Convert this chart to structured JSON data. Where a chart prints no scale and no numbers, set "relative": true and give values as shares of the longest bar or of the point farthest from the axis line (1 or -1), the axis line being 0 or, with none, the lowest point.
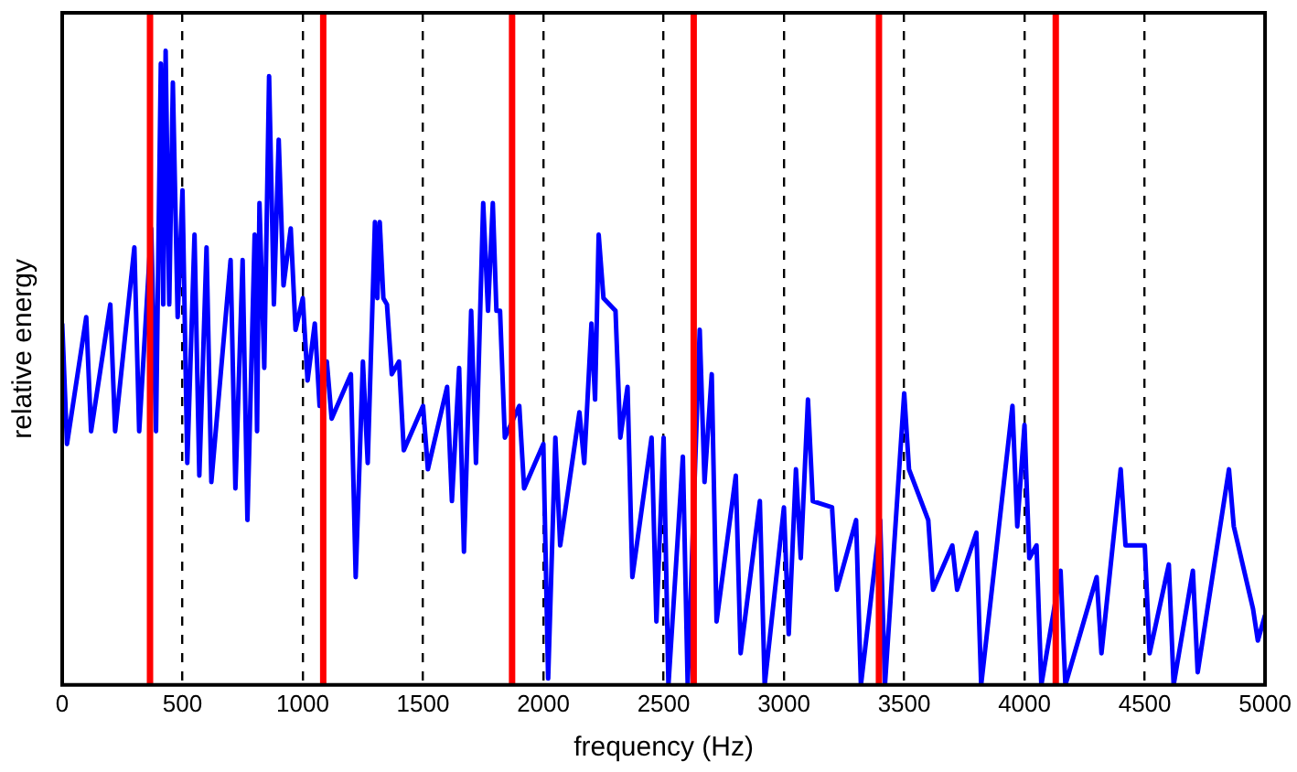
{
  "chart_data": {
    "type": "line",
    "relative": true,
    "xlabel": "frequency (Hz)",
    "ylabel": "relative energy",
    "xlim": [
      0,
      5000
    ],
    "xticks": [
      0,
      500,
      1000,
      1500,
      2000,
      2500,
      3000,
      3500,
      4000,
      4500,
      5000
    ],
    "grid": "x",
    "marker": "none",
    "line_style": "solid",
    "series": [
      {
        "color": "#0000ff",
        "x": [
          0,
          20,
          100,
          120,
          200,
          220,
          300,
          320,
          370,
          390,
          410,
          420,
          430,
          445,
          460,
          480,
          500,
          520,
          550,
          570,
          600,
          620,
          700,
          720,
          750,
          770,
          800,
          810,
          820,
          840,
          860,
          880,
          900,
          920,
          950,
          970,
          1000,
          1020,
          1050,
          1070,
          1100,
          1120,
          1200,
          1220,
          1250,
          1270,
          1300,
          1310,
          1320,
          1335,
          1350,
          1370,
          1400,
          1420,
          1500,
          1520,
          1600,
          1620,
          1650,
          1670,
          1700,
          1720,
          1750,
          1770,
          1790,
          1805,
          1820,
          1840,
          1900,
          1920,
          2000,
          2020,
          2050,
          2070,
          2150,
          2170,
          2200,
          2215,
          2230,
          2250,
          2300,
          2320,
          2350,
          2370,
          2450,
          2470,
          2500,
          2520,
          2580,
          2600,
          2650,
          2670,
          2700,
          2720,
          2800,
          2820,
          2900,
          2920,
          3000,
          3020,
          3050,
          3070,
          3100,
          3120,
          3200,
          3220,
          3300,
          3320,
          3400,
          3420,
          3500,
          3520,
          3600,
          3620,
          3700,
          3720,
          3800,
          3820,
          3950,
          3970,
          4000,
          4020,
          4050,
          4070,
          4150,
          4170,
          4300,
          4320,
          4400,
          4420,
          4500,
          4520,
          4600,
          4620,
          4700,
          4720,
          4850,
          4870,
          4950,
          4970,
          5000
        ],
        "values": [
          0.57,
          0.38,
          0.58,
          0.4,
          0.6,
          0.4,
          0.69,
          0.4,
          0.72,
          0.4,
          0.98,
          0.6,
          1,
          0.6,
          0.95,
          0.58,
          0.78,
          0.35,
          0.71,
          0.33,
          0.69,
          0.32,
          0.67,
          0.31,
          0.67,
          0.26,
          0.71,
          0.4,
          0.76,
          0.5,
          0.96,
          0.6,
          0.86,
          0.63,
          0.72,
          0.56,
          0.61,
          0.48,
          0.57,
          0.44,
          0.51,
          0.42,
          0.49,
          0.17,
          0.51,
          0.35,
          0.73,
          0.61,
          0.73,
          0.61,
          0.6,
          0.49,
          0.51,
          0.37,
          0.44,
          0.34,
          0.47,
          0.29,
          0.5,
          0.21,
          0.59,
          0.35,
          0.76,
          0.59,
          0.76,
          0.59,
          0.59,
          0.39,
          0.44,
          0.31,
          0.38,
          0.01,
          0.39,
          0.22,
          0.43,
          0.35,
          0.57,
          0.45,
          0.71,
          0.61,
          0.59,
          0.39,
          0.47,
          0.17,
          0.39,
          0.1,
          0.39,
          0,
          0.36,
          0,
          0.56,
          0.32,
          0.49,
          0.1,
          0.33,
          0.05,
          0.29,
          0,
          0.28,
          0.08,
          0.34,
          0.2,
          0.45,
          0.29,
          0.28,
          0.15,
          0.26,
          0,
          0.26,
          0,
          0.46,
          0.34,
          0.26,
          0.15,
          0.22,
          0.15,
          0.24,
          0,
          0.44,
          0.25,
          0.41,
          0.2,
          0.22,
          0,
          0.18,
          0,
          0.17,
          0.05,
          0.34,
          0.22,
          0.22,
          0.05,
          0.19,
          0,
          0.18,
          0.02,
          0.34,
          0.25,
          0.12,
          0.07,
          0.11
        ]
      }
    ],
    "ref_lines": [
      {
        "axis": "x",
        "value": 365,
        "color": "#ff0000"
      },
      {
        "axis": "x",
        "value": 1085,
        "color": "#ff0000"
      },
      {
        "axis": "x",
        "value": 1870,
        "color": "#ff0000"
      },
      {
        "axis": "x",
        "value": 2625,
        "color": "#ff0000"
      },
      {
        "axis": "x",
        "value": 3395,
        "color": "#ff0000"
      },
      {
        "axis": "x",
        "value": 4130,
        "color": "#ff0000"
      }
    ]
  }
}
